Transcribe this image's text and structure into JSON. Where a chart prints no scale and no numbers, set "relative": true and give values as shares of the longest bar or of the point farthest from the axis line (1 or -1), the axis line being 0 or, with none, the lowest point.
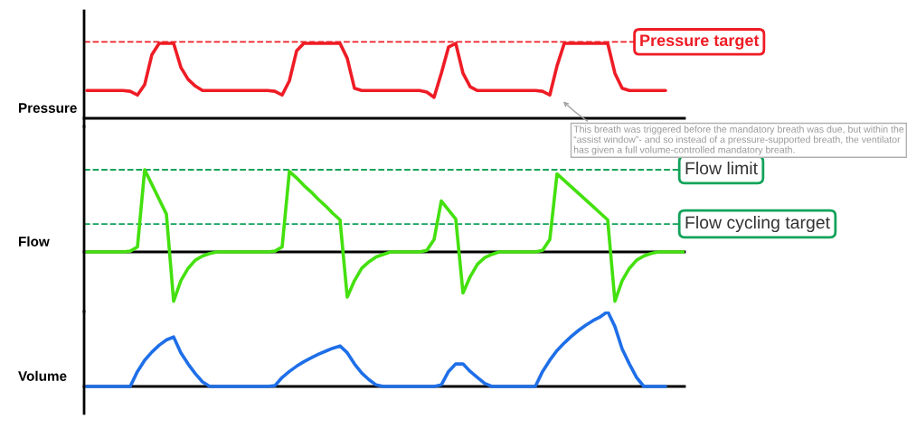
{
  "chart_data": [
    {
      "type": "line",
      "ylabel": "Pressure",
      "relative": true,
      "categories": [
        null,
        null,
        null,
        null,
        null,
        null,
        null,
        null,
        null,
        null,
        null,
        null,
        null,
        null,
        null,
        null,
        null,
        null,
        null,
        null,
        null,
        null,
        null,
        null,
        null,
        null,
        null,
        null,
        null,
        null,
        null,
        null,
        null,
        null,
        null,
        null,
        null,
        null,
        null,
        null,
        null,
        null,
        null,
        null,
        null,
        null,
        null,
        null,
        null,
        null,
        null,
        null,
        null,
        null,
        null,
        null,
        null,
        null,
        null,
        null,
        null,
        null,
        null,
        null,
        null,
        null,
        null,
        null,
        null,
        null,
        null,
        null,
        null,
        null,
        null,
        null,
        null,
        null,
        null,
        null,
        null,
        null,
        null,
        null
      ],
      "series": [
        {
          "color": "#ee1c25",
          "values": [
            0.37,
            0.37,
            0.37,
            0.37,
            0.37,
            0.37,
            0.36,
            0.31,
            0.45,
            0.85,
            1.0,
            1.0,
            1.0,
            0.68,
            0.52,
            0.43,
            0.37,
            0.37,
            0.37,
            0.37,
            0.37,
            0.37,
            0.37,
            0.37,
            0.37,
            0.37,
            0.36,
            0.31,
            0.5,
            0.9,
            1.0,
            1.0,
            1.0,
            1.0,
            1.0,
            1.0,
            0.8,
            0.4,
            0.37,
            0.37,
            0.37,
            0.37,
            0.37,
            0.37,
            0.37,
            0.37,
            0.37,
            0.35,
            0.28,
            0.6,
            0.95,
            1.0,
            0.6,
            0.42,
            0.37,
            0.37,
            0.37,
            0.37,
            0.37,
            0.37,
            0.37,
            0.37,
            0.37,
            0.36,
            0.31,
            0.7,
            1.0,
            1.0,
            1.0,
            1.0,
            1.0,
            1.0,
            1.0,
            0.6,
            0.4,
            0.37,
            0.37,
            0.37,
            0.37,
            0.37,
            0.37,
            null,
            null,
            null
          ]
        }
      ],
      "ref_lines": [
        {
          "axis": "y",
          "value": 1.02,
          "label": "Pressure target",
          "color": "#ee1c25",
          "line_style": "dashed"
        }
      ],
      "annotations": [
        "This breath was triggered before the mandatory breath was due, but within the “assist window”- and so instead of a pressure-supported breath, the ventilator has given a full volume-controlled mandatory breath."
      ]
    },
    {
      "type": "line",
      "ylabel": "Flow",
      "relative": true,
      "categories": [
        null,
        null,
        null,
        null,
        null,
        null,
        null,
        null,
        null,
        null,
        null,
        null,
        null,
        null,
        null,
        null,
        null,
        null,
        null,
        null,
        null,
        null,
        null,
        null,
        null,
        null,
        null,
        null,
        null,
        null,
        null,
        null,
        null,
        null,
        null,
        null,
        null,
        null,
        null,
        null,
        null,
        null,
        null,
        null,
        null,
        null,
        null,
        null,
        null,
        null,
        null,
        null,
        null,
        null,
        null,
        null,
        null,
        null,
        null,
        null,
        null,
        null,
        null,
        null,
        null,
        null,
        null,
        null,
        null,
        null,
        null,
        null,
        null,
        null,
        null,
        null,
        null,
        null,
        null,
        null,
        null,
        null,
        null,
        null
      ],
      "series": [
        {
          "color": "#44e00f",
          "values": [
            0,
            0,
            0,
            0,
            0,
            0,
            0.01,
            0.06,
            1.0,
            0.82,
            0.64,
            0.46,
            -0.6,
            -0.35,
            -0.2,
            -0.1,
            -0.05,
            -0.02,
            0,
            0,
            0,
            0,
            0,
            0,
            0,
            0,
            0.01,
            0.06,
            0.98,
            0.9,
            0.81,
            0.73,
            0.64,
            0.56,
            0.47,
            0.39,
            -0.55,
            -0.35,
            -0.2,
            -0.12,
            -0.06,
            -0.03,
            0,
            0,
            0,
            0,
            0,
            0.02,
            0.15,
            0.62,
            0.51,
            0.4,
            -0.5,
            -0.3,
            -0.15,
            -0.07,
            -0.03,
            0,
            0,
            0,
            0,
            0,
            0,
            0.02,
            0.15,
            0.95,
            0.87,
            0.79,
            0.71,
            0.63,
            0.55,
            0.47,
            0.39,
            -0.6,
            -0.35,
            -0.2,
            -0.1,
            -0.05,
            -0.02,
            0,
            0,
            0,
            0,
            0
          ]
        }
      ],
      "ref_lines": [
        {
          "axis": "y",
          "value": 1.0,
          "label": "Flow limit",
          "color": "#12a35a",
          "line_style": "dashed"
        },
        {
          "axis": "y",
          "value": 0.34,
          "label": "Flow cycling target",
          "color": "#12a35a",
          "line_style": "dashed"
        }
      ]
    },
    {
      "type": "line",
      "ylabel": "Volume",
      "relative": true,
      "categories": [
        null,
        null,
        null,
        null,
        null,
        null,
        null,
        null,
        null,
        null,
        null,
        null,
        null,
        null,
        null,
        null,
        null,
        null,
        null,
        null,
        null,
        null,
        null,
        null,
        null,
        null,
        null,
        null,
        null,
        null,
        null,
        null,
        null,
        null,
        null,
        null,
        null,
        null,
        null,
        null,
        null,
        null,
        null,
        null,
        null,
        null,
        null,
        null,
        null,
        null,
        null,
        null,
        null,
        null,
        null,
        null,
        null,
        null,
        null,
        null,
        null,
        null,
        null,
        null,
        null,
        null,
        null,
        null,
        null,
        null,
        null,
        null,
        null,
        null,
        null,
        null,
        null,
        null,
        null,
        null,
        null,
        null,
        null,
        null
      ],
      "series": [
        {
          "color": "#1f6fe8",
          "values": [
            0,
            0,
            0,
            0,
            0,
            0,
            0,
            0.2,
            0.35,
            0.46,
            0.55,
            0.62,
            0.66,
            0.45,
            0.3,
            0.17,
            0.06,
            0,
            0,
            0,
            0,
            0,
            0,
            0,
            0,
            0,
            0.01,
            0.12,
            0.2,
            0.27,
            0.33,
            0.38,
            0.43,
            0.47,
            0.51,
            0.54,
            0.45,
            0.3,
            0.18,
            0.09,
            0.02,
            0,
            0,
            0,
            0,
            0,
            0,
            0,
            0,
            0.02,
            0.2,
            0.3,
            0.3,
            0.2,
            0.12,
            0.04,
            0,
            0,
            0,
            0,
            0,
            0,
            0,
            0.2,
            0.35,
            0.48,
            0.58,
            0.67,
            0.75,
            0.82,
            0.88,
            0.93,
            1.0,
            0.8,
            0.5,
            0.3,
            0.12,
            0,
            0,
            0,
            0,
            null,
            null,
            null
          ]
        }
      ]
    }
  ]
}
